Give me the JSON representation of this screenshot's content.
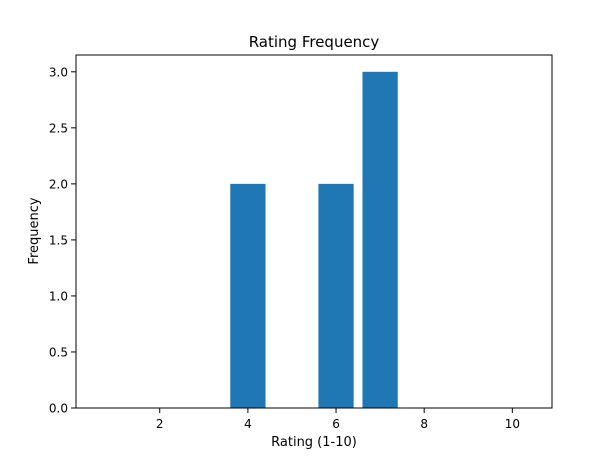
{
  "chart_data": {
    "type": "bar",
    "title": "Rating Frequency",
    "xlabel": "Rating (1-10)",
    "ylabel": "Frequency",
    "x": [
      1,
      2,
      3,
      4,
      5,
      6,
      7,
      8,
      9,
      10
    ],
    "values": [
      0,
      0,
      0,
      2,
      0,
      2,
      3,
      0,
      0,
      0
    ],
    "bar_width": 0.8,
    "xlim": [
      0.1,
      10.9
    ],
    "ylim": [
      0,
      3.15
    ],
    "xticks": [
      2,
      4,
      6,
      8,
      10
    ],
    "yticks": [
      0,
      0.5,
      1,
      1.5,
      2,
      2.5,
      3
    ],
    "xtick_labels": [
      "2",
      "4",
      "6",
      "8",
      "10"
    ],
    "ytick_labels": [
      "0.0",
      "0.5",
      "1.0",
      "1.5",
      "2.0",
      "2.5",
      "3.0"
    ],
    "grid": false,
    "colors": {
      "bar": "#1f77b4",
      "axes": "#000000",
      "background": "#ffffff"
    }
  }
}
